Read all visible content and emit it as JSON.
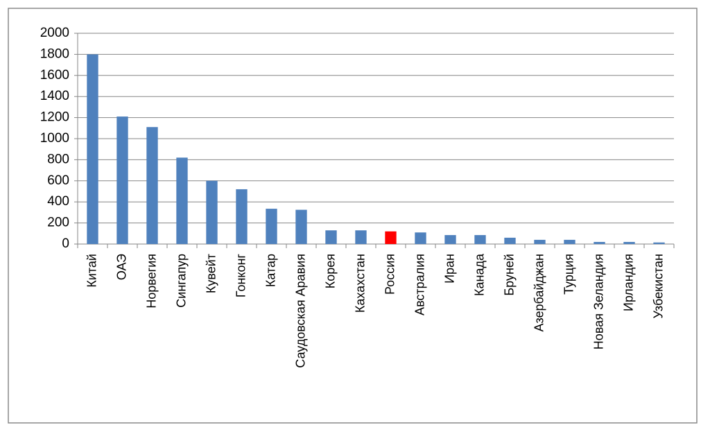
{
  "chart_data": {
    "type": "bar",
    "categories": [
      "Китай",
      "ОАЭ",
      "Норвегия",
      "Сингапур",
      "Кувейт",
      "Гонконг",
      "Катар",
      "Саудовская Аравия",
      "Корея",
      "Кахахстан",
      "Россия",
      "Австралия",
      "Иран",
      "Канада",
      "Бруней",
      "Азербайджан",
      "Турция",
      "Новая Зеландия",
      "Ирландия",
      "Узбекистан"
    ],
    "values": [
      1800,
      1210,
      1110,
      820,
      600,
      520,
      335,
      325,
      130,
      130,
      120,
      110,
      85,
      85,
      60,
      40,
      40,
      20,
      20,
      15
    ],
    "colors": [
      "#4f81bd",
      "#4f81bd",
      "#4f81bd",
      "#4f81bd",
      "#4f81bd",
      "#4f81bd",
      "#4f81bd",
      "#4f81bd",
      "#4f81bd",
      "#4f81bd",
      "#ff0000",
      "#4f81bd",
      "#4f81bd",
      "#4f81bd",
      "#4f81bd",
      "#4f81bd",
      "#4f81bd",
      "#4f81bd",
      "#4f81bd",
      "#4f81bd"
    ],
    "ylim": [
      0,
      2000
    ],
    "yticks": [
      0,
      200,
      400,
      600,
      800,
      1000,
      1200,
      1400,
      1600,
      1800,
      2000
    ],
    "grid": true
  }
}
